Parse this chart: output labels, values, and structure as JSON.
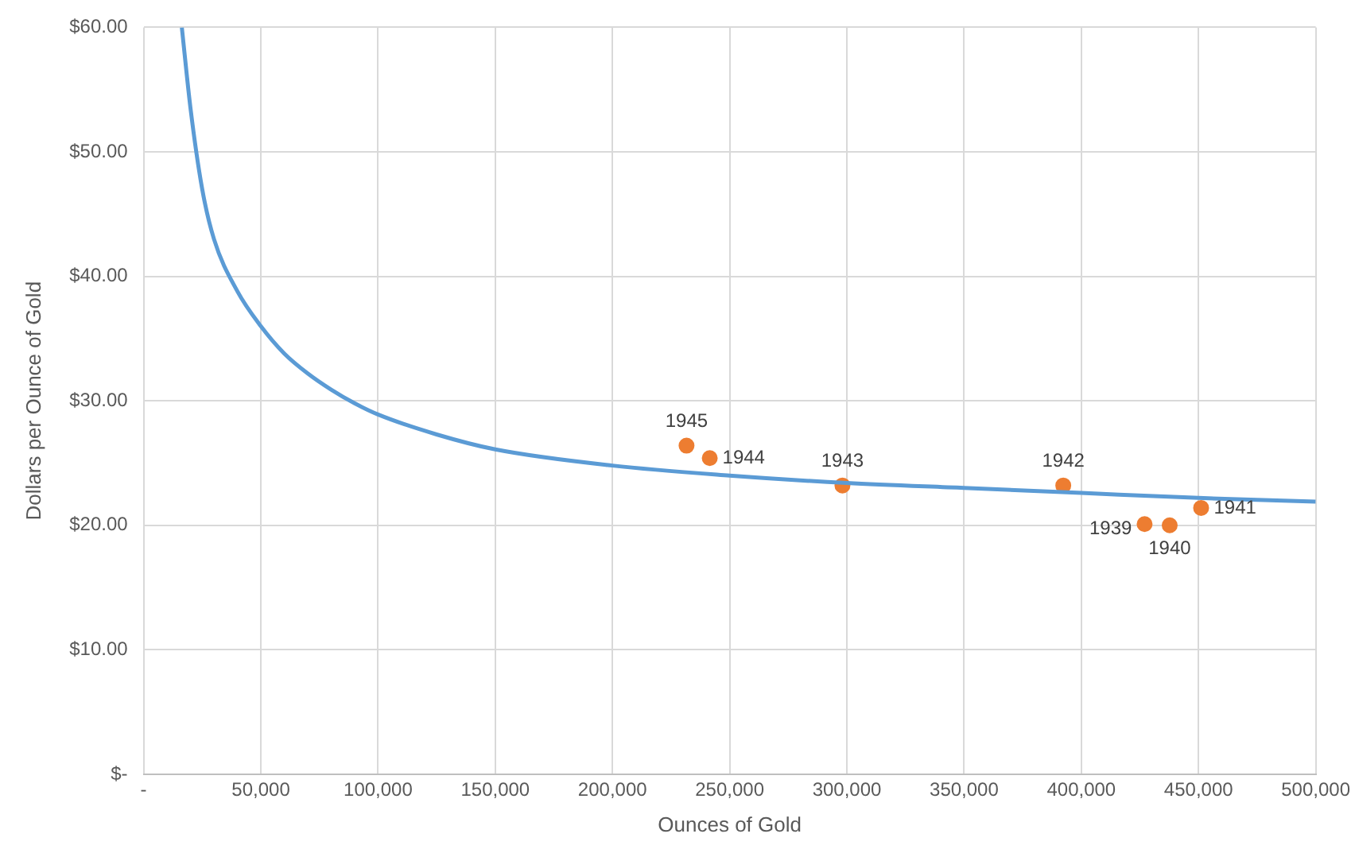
{
  "chart_data": {
    "type": "scatter",
    "xlabel": "Ounces of Gold",
    "ylabel": "Dollars per Ounce of Gold",
    "xlim": [
      0,
      500000
    ],
    "xticks": [
      {
        "value": 0,
        "label": "-"
      },
      {
        "value": 50000,
        "label": "50,000"
      },
      {
        "value": 100000,
        "label": "100,000"
      },
      {
        "value": 150000,
        "label": "150,000"
      },
      {
        "value": 200000,
        "label": "200,000"
      },
      {
        "value": 250000,
        "label": "250,000"
      },
      {
        "value": 300000,
        "label": "300,000"
      },
      {
        "value": 350000,
        "label": "350,000"
      },
      {
        "value": 400000,
        "label": "400,000"
      },
      {
        "value": 450000,
        "label": "450,000"
      },
      {
        "value": 500000,
        "label": "500,000"
      }
    ],
    "ylim": [
      0,
      60
    ],
    "yticks": [
      {
        "value": 0,
        "label": "$-"
      },
      {
        "value": 10,
        "label": "$10.00"
      },
      {
        "value": 20,
        "label": "$20.00"
      },
      {
        "value": 30,
        "label": "$30.00"
      },
      {
        "value": 40,
        "label": "$40.00"
      },
      {
        "value": 50,
        "label": "$50.00"
      },
      {
        "value": 60,
        "label": "$60.00"
      }
    ],
    "grid": true,
    "legend": false,
    "series": [
      {
        "type": "line",
        "color": "#5b9bd5",
        "marker": "none",
        "x": [
          16300,
          20000,
          25000,
          30000,
          40000,
          50000,
          60000,
          70000,
          80000,
          90000,
          100000,
          125000,
          150000,
          200000,
          250000,
          300000,
          350000,
          400000,
          450000,
          500000
        ],
        "values": [
          60,
          53.5,
          47,
          43,
          38.8,
          36,
          33.8,
          32.2,
          30.9,
          29.8,
          28.9,
          27.3,
          26.1,
          24.8,
          24.0,
          23.4,
          23.0,
          22.6,
          22.2,
          21.9
        ]
      },
      {
        "color": "#ed7d31",
        "marker": "circle",
        "x": [
          427000,
          437700,
          451100,
          392300,
          298100,
          241500,
          231600
        ],
        "values": [
          20.1,
          20.0,
          21.4,
          23.2,
          23.2,
          25.4,
          26.4
        ]
      }
    ],
    "annotations": [
      {
        "text": "1939",
        "x": 427000,
        "y": 20.1
      },
      {
        "text": "1940",
        "x": 437700,
        "y": 20.0
      },
      {
        "text": "1941",
        "x": 451100,
        "y": 21.4
      },
      {
        "text": "1942",
        "x": 392300,
        "y": 23.2
      },
      {
        "text": "1943",
        "x": 298100,
        "y": 23.2
      },
      {
        "text": "1944",
        "x": 241500,
        "y": 25.4
      },
      {
        "text": "1945",
        "x": 231600,
        "y": 26.4
      }
    ]
  }
}
